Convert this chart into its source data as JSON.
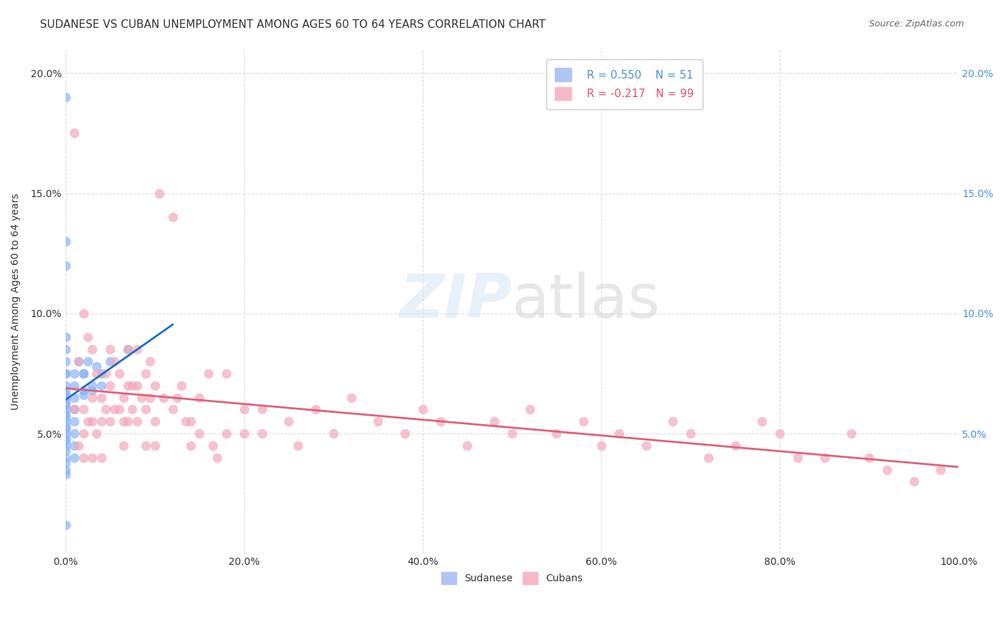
{
  "title": "SUDANESE VS CUBAN UNEMPLOYMENT AMONG AGES 60 TO 64 YEARS CORRELATION CHART",
  "source": "Source: ZipAtlas.com",
  "ylabel": "Unemployment Among Ages 60 to 64 years",
  "xlabel": "",
  "xlim": [
    0,
    1.0
  ],
  "ylim": [
    0,
    0.21
  ],
  "xticks": [
    0.0,
    0.2,
    0.4,
    0.6,
    0.8,
    1.0
  ],
  "xticklabels": [
    "0.0%",
    "20.0%",
    "40.0%",
    "60.0%",
    "80.0%",
    "100.0%"
  ],
  "yticks": [
    0.0,
    0.05,
    0.1,
    0.15,
    0.2
  ],
  "yticklabels": [
    "",
    "5.0%",
    "10.0%",
    "15.0%",
    "20.0%"
  ],
  "right_yticklabels": [
    "",
    "5.0%",
    "10.0%",
    "15.0%",
    "20.0%"
  ],
  "legend_r_sudanese": "R = 0.550",
  "legend_n_sudanese": "N = 51",
  "legend_r_cuban": "R = -0.217",
  "legend_n_cuban": "N = 99",
  "sudanese_color": "#8ab4f8",
  "cuban_color": "#f4a7b9",
  "trendline_sudanese_color": "#1a6fc4",
  "trendline_cuban_color": "#e0607e",
  "title_fontsize": 11,
  "axis_label_fontsize": 10,
  "tick_fontsize": 10,
  "watermark_text": "ZIPatlas",
  "sudanese_x": [
    0.0,
    0.0,
    0.0,
    0.0,
    0.0,
    0.0,
    0.0,
    0.0,
    0.0,
    0.0,
    0.0,
    0.0,
    0.0,
    0.0,
    0.0,
    0.0,
    0.0,
    0.0,
    0.0,
    0.0,
    0.0,
    0.0,
    0.0,
    0.0,
    0.0,
    0.0,
    0.0,
    0.0,
    0.0,
    0.0,
    0.01,
    0.01,
    0.01,
    0.01,
    0.01,
    0.01,
    0.01,
    0.01,
    0.015,
    0.02,
    0.02,
    0.02,
    0.02,
    0.025,
    0.03,
    0.03,
    0.035,
    0.04,
    0.04,
    0.05,
    0.07
  ],
  "sudanese_y": [
    0.19,
    0.13,
    0.12,
    0.09,
    0.085,
    0.08,
    0.075,
    0.075,
    0.07,
    0.068,
    0.066,
    0.065,
    0.063,
    0.062,
    0.06,
    0.058,
    0.057,
    0.055,
    0.053,
    0.052,
    0.05,
    0.048,
    0.047,
    0.045,
    0.043,
    0.04,
    0.038,
    0.035,
    0.033,
    0.012,
    0.075,
    0.07,
    0.065,
    0.06,
    0.055,
    0.05,
    0.045,
    0.04,
    0.08,
    0.075,
    0.075,
    0.068,
    0.066,
    0.08,
    0.07,
    0.068,
    0.078,
    0.075,
    0.07,
    0.08,
    0.085
  ],
  "cuban_x": [
    0.01,
    0.01,
    0.015,
    0.015,
    0.02,
    0.02,
    0.02,
    0.02,
    0.025,
    0.025,
    0.03,
    0.03,
    0.03,
    0.03,
    0.035,
    0.035,
    0.04,
    0.04,
    0.04,
    0.045,
    0.045,
    0.05,
    0.05,
    0.05,
    0.055,
    0.055,
    0.06,
    0.06,
    0.065,
    0.065,
    0.065,
    0.07,
    0.07,
    0.07,
    0.075,
    0.075,
    0.08,
    0.08,
    0.08,
    0.085,
    0.09,
    0.09,
    0.09,
    0.095,
    0.095,
    0.1,
    0.1,
    0.1,
    0.105,
    0.11,
    0.12,
    0.12,
    0.125,
    0.13,
    0.135,
    0.14,
    0.14,
    0.15,
    0.15,
    0.16,
    0.165,
    0.17,
    0.18,
    0.18,
    0.2,
    0.2,
    0.22,
    0.22,
    0.25,
    0.26,
    0.28,
    0.3,
    0.32,
    0.35,
    0.38,
    0.4,
    0.42,
    0.45,
    0.48,
    0.5,
    0.52,
    0.55,
    0.58,
    0.6,
    0.62,
    0.65,
    0.68,
    0.7,
    0.72,
    0.75,
    0.78,
    0.8,
    0.82,
    0.85,
    0.88,
    0.9,
    0.92,
    0.95,
    0.98
  ],
  "cuban_y": [
    0.175,
    0.06,
    0.08,
    0.045,
    0.1,
    0.06,
    0.05,
    0.04,
    0.09,
    0.055,
    0.085,
    0.065,
    0.055,
    0.04,
    0.075,
    0.05,
    0.065,
    0.055,
    0.04,
    0.075,
    0.06,
    0.085,
    0.07,
    0.055,
    0.08,
    0.06,
    0.075,
    0.06,
    0.065,
    0.055,
    0.045,
    0.085,
    0.07,
    0.055,
    0.07,
    0.06,
    0.085,
    0.07,
    0.055,
    0.065,
    0.075,
    0.06,
    0.045,
    0.08,
    0.065,
    0.07,
    0.055,
    0.045,
    0.15,
    0.065,
    0.14,
    0.06,
    0.065,
    0.07,
    0.055,
    0.055,
    0.045,
    0.065,
    0.05,
    0.075,
    0.045,
    0.04,
    0.075,
    0.05,
    0.06,
    0.05,
    0.06,
    0.05,
    0.055,
    0.045,
    0.06,
    0.05,
    0.065,
    0.055,
    0.05,
    0.06,
    0.055,
    0.045,
    0.055,
    0.05,
    0.06,
    0.05,
    0.055,
    0.045,
    0.05,
    0.045,
    0.055,
    0.05,
    0.04,
    0.045,
    0.055,
    0.05,
    0.04,
    0.04,
    0.05,
    0.04,
    0.035,
    0.03,
    0.035
  ]
}
